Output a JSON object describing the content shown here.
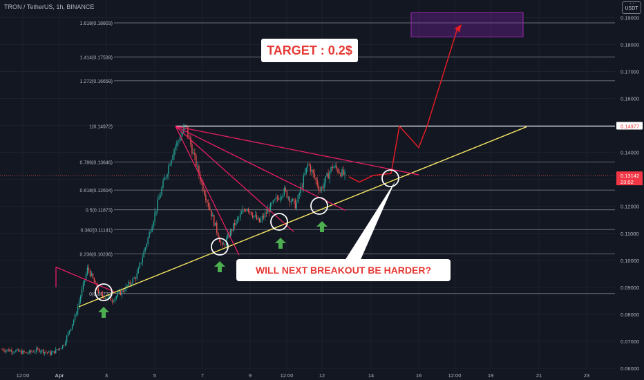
{
  "header": {
    "symbol_line": "TRON / TetherUS, 1h, BINANCE"
  },
  "currency": {
    "code": "USDT"
  },
  "chart_data": {
    "type": "candlestick",
    "x_ticks": [
      "12:00",
      "Apr",
      "3",
      "5",
      "7",
      "9",
      "12:00",
      "12",
      "14",
      "16",
      "12:00",
      "19",
      "21",
      "23"
    ],
    "y_ticks": [
      "0.19000",
      "0.18000",
      "0.17000",
      "0.16000",
      "0.15000",
      "0.14000",
      "0.13000",
      "0.12000",
      "0.11000",
      "0.10000",
      "0.09000",
      "0.08000",
      "0.07000",
      "0.06000"
    ],
    "y_range": [
      0.0595,
      0.1965
    ],
    "fib_levels": [
      {
        "label": "1.618(0.18803)",
        "value": 0.18803
      },
      {
        "label": "1.414(0.17539)",
        "value": 0.17539
      },
      {
        "label": "1.272(0.16658)",
        "value": 0.16658
      },
      {
        "label": "1(0.14972)",
        "value": 0.14972
      },
      {
        "label": "0.786(0.13646)",
        "value": 0.13646
      },
      {
        "label": "0.618(0.12604)",
        "value": 0.12604
      },
      {
        "label": "0.5(0.11873)",
        "value": 0.11873
      },
      {
        "label": "0.382(0.11141)",
        "value": 0.11141
      },
      {
        "label": "0.236(0.10236)",
        "value": 0.10236
      },
      {
        "label": "0(0.08772)",
        "value": 0.08772
      }
    ],
    "price_labels": [
      {
        "text": "0.14977",
        "value": 0.14977,
        "bg": "#ffffff",
        "fg": "#e53935"
      },
      {
        "text": "0.13142",
        "value": 0.13142,
        "sub": "23:02",
        "bg": "#f23645",
        "fg": "#ffffff"
      }
    ],
    "price_path": [
      [
        0.067,
        0.0665
      ],
      [
        0.0665,
        0.0656
      ],
      [
        0.0656,
        0.0669
      ],
      [
        0.0669,
        0.0654
      ],
      [
        0.0654,
        0.0685
      ],
      [
        0.0685,
        0.0796
      ],
      [
        0.0796,
        0.0972
      ],
      [
        0.0972,
        0.0871
      ],
      [
        0.0871,
        0.0854
      ],
      [
        0.0854,
        0.0893
      ],
      [
        0.0893,
        0.0943
      ],
      [
        0.0943,
        0.1095
      ],
      [
        0.1095,
        0.1259
      ],
      [
        0.1259,
        0.1409
      ],
      [
        0.1409,
        0.1497
      ],
      [
        0.1497,
        0.1332
      ],
      [
        0.1332,
        0.1186
      ],
      [
        0.1186,
        0.1046
      ],
      [
        0.1046,
        0.1135
      ],
      [
        0.1135,
        0.1199
      ],
      [
        0.1199,
        0.114
      ],
      [
        0.114,
        0.1202
      ],
      [
        0.1202,
        0.1259
      ],
      [
        0.1259,
        0.1202
      ],
      [
        0.1202,
        0.1359
      ],
      [
        0.1359,
        0.1259
      ],
      [
        0.1259,
        0.135
      ],
      [
        0.135,
        0.13142
      ]
    ],
    "trendlines": {
      "support": {
        "from": [
          "Apr 1",
          0.0828
        ],
        "to": [
          "Apr 20",
          0.1495
        ]
      },
      "resistance_top": {
        "value": 0.14977
      },
      "fan_origin": [
        "Apr 5",
        0.1497
      ]
    },
    "target_zone": {
      "low": 0.1828,
      "high": 0.1918
    },
    "annotations": {
      "target": "TARGET : 0.2$",
      "question": "WILL NEXT BREAKOUT BE HARDER?"
    },
    "colors": {
      "background": "#131722",
      "up": "#26a69a",
      "down": "#ef5350",
      "trend_pink": "#e91e63",
      "support_yellow": "#f5e663",
      "projection_red": "#e31c25",
      "zone_purple": "#7b1fa2",
      "arrow_green": "#4caf50"
    }
  }
}
